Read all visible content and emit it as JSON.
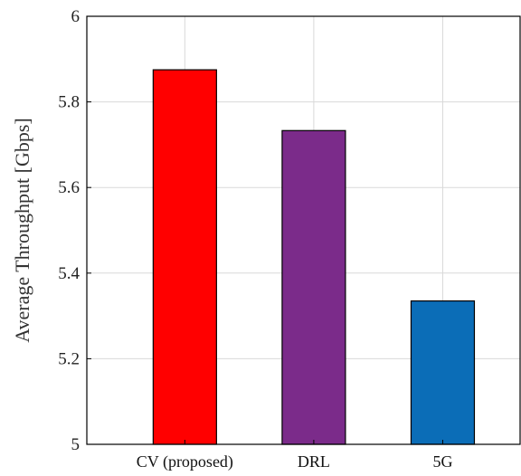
{
  "chart_data": {
    "type": "bar",
    "categories": [
      "CV (proposed)",
      "DRL",
      "5G"
    ],
    "values": [
      5.875,
      5.733,
      5.335
    ],
    "bar_colors": [
      "#ff0000",
      "#7b2b8a",
      "#0b6db7"
    ],
    "title": "",
    "xlabel": "",
    "ylabel": "Average Throughput [Gbps]",
    "ylim": [
      5,
      6
    ],
    "yticks": [
      5,
      5.2,
      5.4,
      5.6,
      5.8,
      6
    ],
    "ytick_labels": [
      "5",
      "5.2",
      "5.4",
      "5.6",
      "5.8",
      "6"
    ],
    "grid": true
  }
}
